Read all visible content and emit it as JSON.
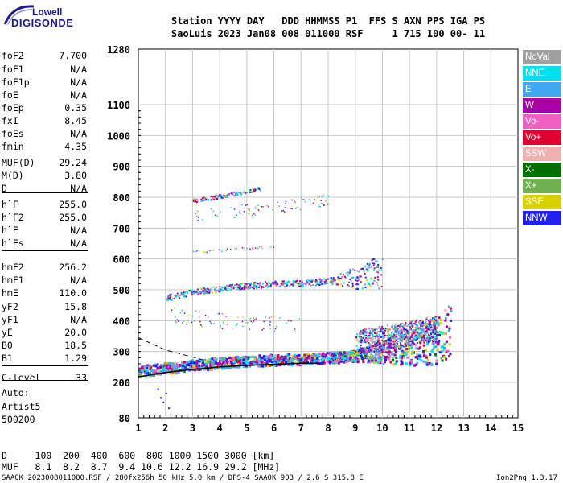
{
  "logo": {
    "top": "Lowell",
    "bottom": "DIGISONDE"
  },
  "header": {
    "line1": "Station YYYY DAY   DDD HHMMSS P1  FFS S AXN PPS IGA PS",
    "line2": "SaoLuis 2023 Jan08 008 011000 RSF     1 715 100 00- 11"
  },
  "params": [
    {
      "name": "foF2",
      "value": "7.700"
    },
    {
      "name": "foF1",
      "value": "N/A"
    },
    {
      "name": "foF1p",
      "value": "N/A"
    },
    {
      "name": "foE",
      "value": "N/A"
    },
    {
      "name": "foEp",
      "value": "0.35"
    },
    {
      "name": "fxI",
      "value": "8.45"
    },
    {
      "name": "foEs",
      "value": "N/A"
    },
    {
      "name": "fmin",
      "value": "4.35"
    },
    {
      "name": "MUF(D)",
      "value": "29.24"
    },
    {
      "name": "M(D)",
      "value": "3.80"
    },
    {
      "name": "D",
      "value": "N/A"
    },
    {
      "name": "h`F",
      "value": "255.0"
    },
    {
      "name": "h`F2",
      "value": "255.0"
    },
    {
      "name": "h`E",
      "value": "N/A"
    },
    {
      "name": "h`Es",
      "value": "N/A"
    },
    {
      "name": "hmF2",
      "value": "256.2"
    },
    {
      "name": "hmF1",
      "value": "N/A"
    },
    {
      "name": "hmE",
      "value": "110.0"
    },
    {
      "name": "yF2",
      "value": "15.8"
    },
    {
      "name": "yF1",
      "value": "N/A"
    },
    {
      "name": "yE",
      "value": "20.0"
    },
    {
      "name": "B0",
      "value": "18.5"
    },
    {
      "name": "B1",
      "value": "1.29"
    },
    {
      "name": "C-level",
      "value": "33"
    }
  ],
  "auto": {
    "line1": "Auto:",
    "line2": "Artist5",
    "line3": "500200"
  },
  "legend": [
    {
      "label": "NoVal",
      "color": "#a0a0a0"
    },
    {
      "label": "NNE",
      "color": "#00e0f0"
    },
    {
      "label": "E",
      "color": "#40a8f0"
    },
    {
      "label": "W",
      "color": "#a800a8"
    },
    {
      "label": "Vo-",
      "color": "#f060c0"
    },
    {
      "label": "Vo+",
      "color": "#e00030"
    },
    {
      "label": "SSW",
      "color": "#f0b0b0"
    },
    {
      "label": "X-",
      "color": "#007000"
    },
    {
      "label": "X+",
      "color": "#70b050"
    },
    {
      "label": "SSE",
      "color": "#d8d000"
    },
    {
      "label": "NNW",
      "color": "#2020f0"
    }
  ],
  "footer": {
    "d_row": "D     100  200  400  600  800 1000 1500 3000 [km]",
    "muf_row": "MUF   8.1  8.2  8.7  9.4 10.6 12.2 16.9 29.2 [MHz]",
    "file_left": "SAA0K_2023008011000.RSF / 280fx256h 50 kHz 5.0 km / DPS-4 SAA0K 903 / 2.6 S 315.8 E",
    "file_right": "Ion2Png 1.3.17"
  },
  "chart_data": {
    "type": "scatter",
    "x_ticks": [
      1,
      2,
      3,
      4,
      5,
      6,
      7,
      8,
      9,
      10,
      11,
      12,
      13,
      14,
      15
    ],
    "y_ticks": [
      80,
      200,
      300,
      400,
      500,
      600,
      700,
      800,
      900,
      1000,
      1100,
      1280
    ],
    "y_axis": "piecewise: 80-200 compressed, 200-1100 linear, 1100-1280 top",
    "xlim": [
      1,
      15
    ],
    "ylim": [
      80,
      1280
    ],
    "grid": true,
    "legend_position": "right",
    "profile_line": {
      "x": [
        1,
        2,
        3,
        4,
        5,
        6,
        7,
        7.7
      ],
      "y": [
        218,
        232,
        242,
        250,
        255,
        258,
        262,
        262
      ]
    },
    "profile_dashed": {
      "x": [
        1,
        2,
        3,
        3.5
      ],
      "y": [
        345,
        305,
        282,
        270
      ]
    },
    "traces": [
      {
        "band": "F main",
        "x": [
          1,
          2,
          3,
          4,
          5,
          6,
          7,
          8,
          9,
          10,
          11,
          12,
          12.5
        ],
        "y": [
          240,
          248,
          258,
          265,
          272,
          275,
          278,
          282,
          288,
          300,
          315,
          340,
          370
        ]
      },
      {
        "band": "F 2nd hop",
        "x": [
          2,
          3,
          4,
          5,
          6,
          7,
          8,
          9,
          10
        ],
        "y": [
          475,
          493,
          505,
          515,
          520,
          523,
          530,
          540,
          560
        ]
      },
      {
        "band": "F 3rd hop",
        "x": [
          3,
          4,
          5,
          5.5
        ],
        "y": [
          790,
          805,
          820,
          830
        ]
      },
      {
        "band": "spread high",
        "x": [
          9,
          10,
          11,
          12
        ],
        "y": [
          330,
          345,
          360,
          380
        ]
      },
      {
        "band": "mid spread",
        "x": [
          2.2,
          3,
          4,
          5,
          6,
          7
        ],
        "y": [
          425,
          410,
          400,
          395,
          390,
          385
        ]
      },
      {
        "band": "upper spread",
        "x": [
          3,
          4,
          5,
          6,
          7,
          8
        ],
        "y": [
          740,
          750,
          760,
          770,
          780,
          790
        ]
      },
      {
        "band": "F2 600",
        "x": [
          3,
          4,
          5,
          6
        ],
        "y": [
          625,
          630,
          635,
          640
        ]
      }
    ]
  }
}
